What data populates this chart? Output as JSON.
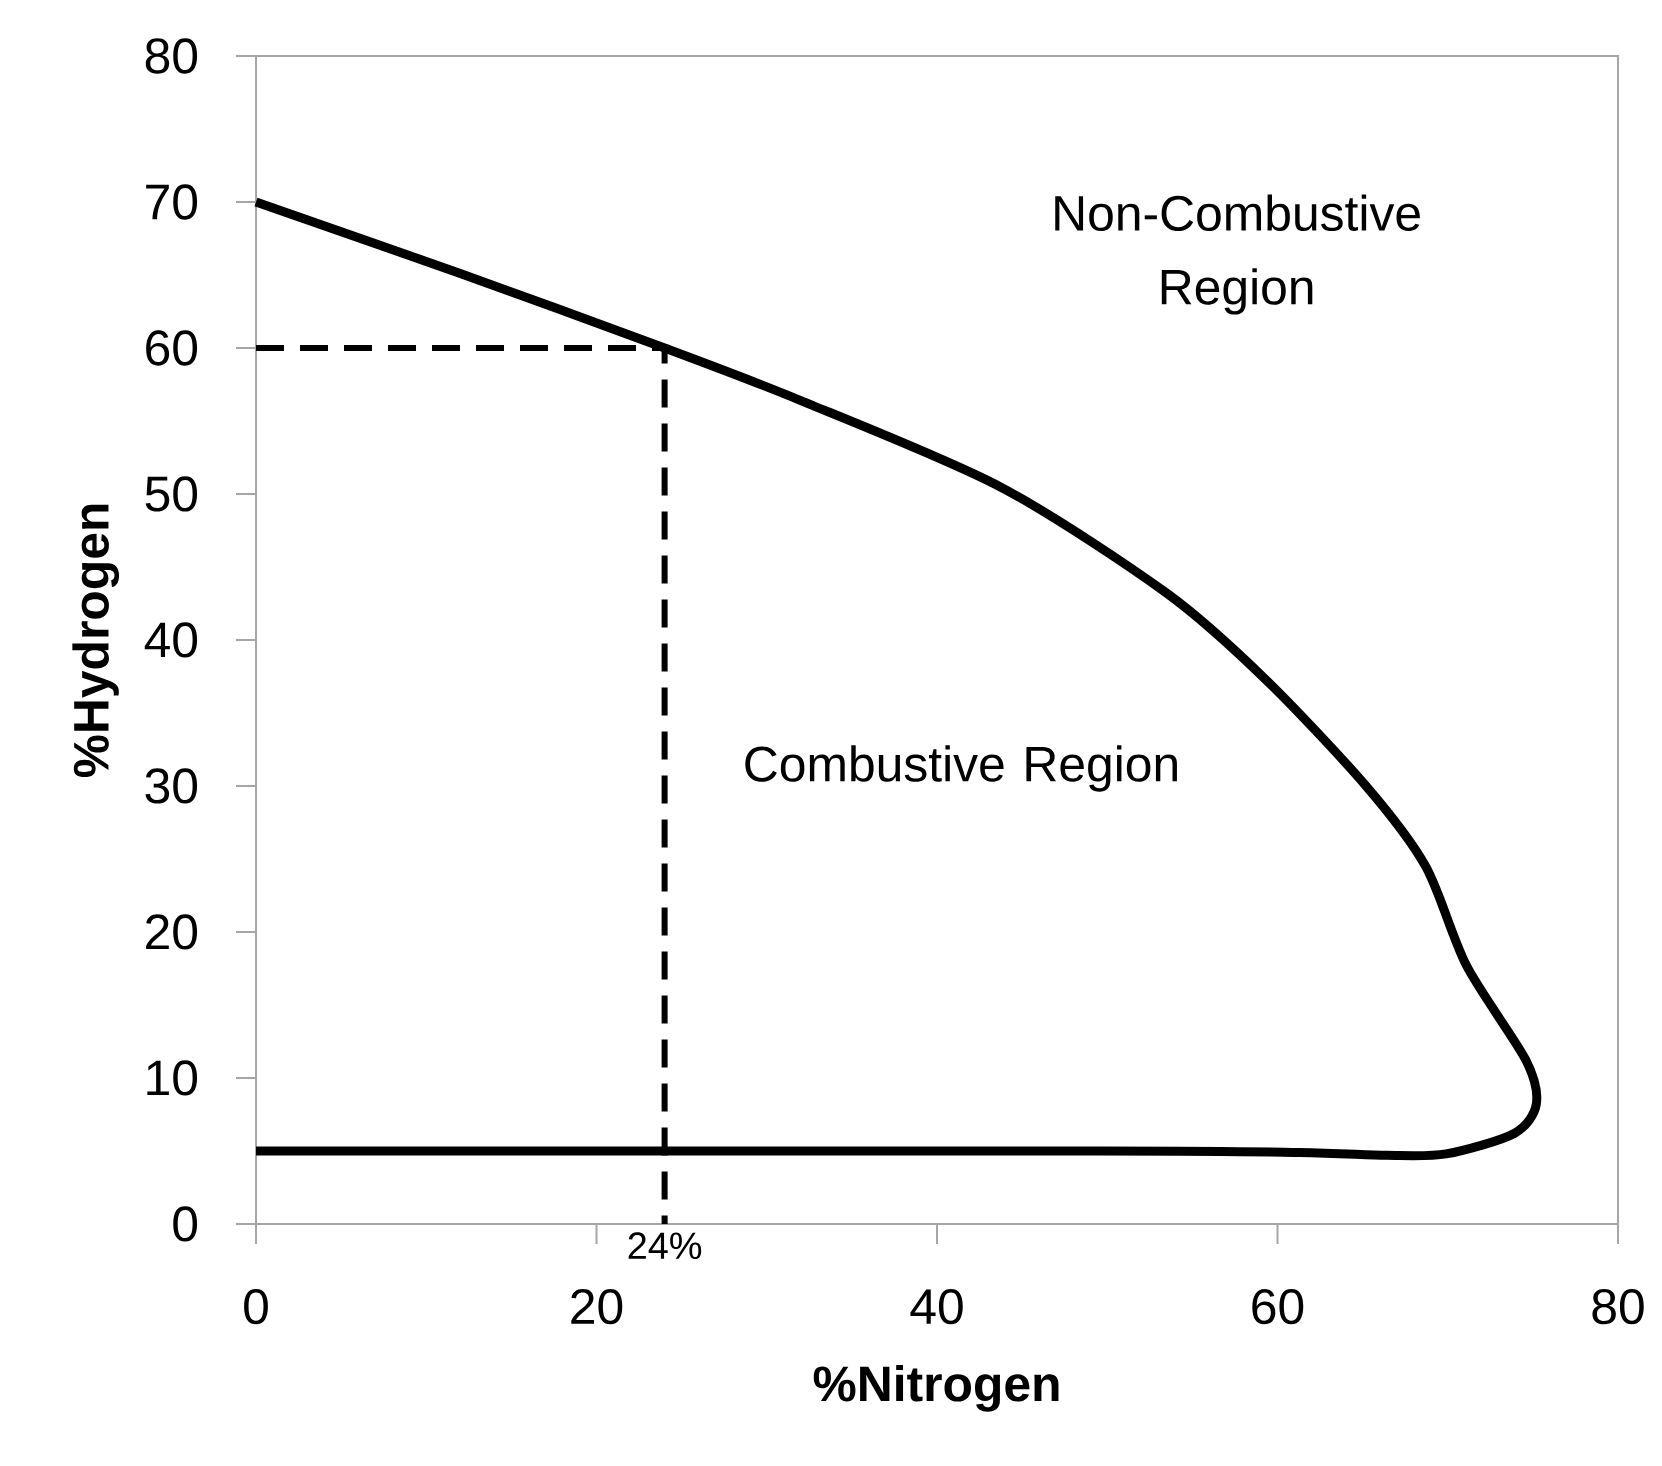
{
  "chart_data": {
    "type": "line",
    "xlabel": "%Nitrogen",
    "ylabel": "%Hydrogen",
    "xlim": [
      0,
      80
    ],
    "ylim": [
      0,
      80
    ],
    "xticks": [
      0,
      20,
      40,
      60,
      80
    ],
    "yticks": [
      0,
      10,
      20,
      30,
      40,
      50,
      60,
      70,
      80
    ],
    "series": [
      {
        "color": "#000000",
        "line_style": "solid",
        "x": [
          0,
          12,
          24,
          32,
          43.7,
          53.5,
          59.3,
          65.2,
          68.7,
          71.1,
          74.6,
          75.2,
          73.9,
          69.9,
          66.4,
          61.3,
          49.6,
          0
        ],
        "values": [
          70,
          65.1,
          60,
          56.4,
          50.5,
          43.2,
          37.3,
          30,
          24.5,
          17.7,
          11.2,
          8.2,
          6.2,
          4.8,
          4.7,
          4.9,
          5,
          5
        ]
      },
      {
        "color": "#000000",
        "line_style": "dashed",
        "x": [
          0,
          24,
          24
        ],
        "values": [
          60,
          60,
          0
        ]
      }
    ],
    "annotations": [
      "Non-Combustive Region",
      "Combustive Region",
      {
        "text": "24%",
        "x": 24,
        "y": 0
      }
    ]
  }
}
